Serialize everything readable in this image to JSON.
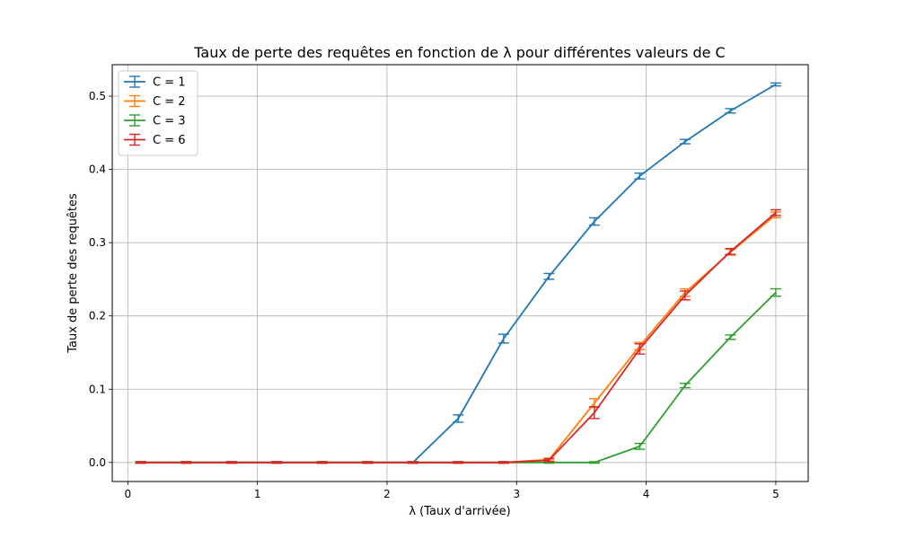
{
  "chart_data": {
    "type": "line",
    "title": "Taux de perte des requêtes en fonction de λ pour différentes valeurs de C",
    "xlabel": "λ (Taux d'arrivée)",
    "ylabel": "Taux de perte des requêtes",
    "xlim": [
      -0.12,
      5.25
    ],
    "ylim": [
      -0.026,
      0.543
    ],
    "xticks": [
      0,
      1,
      2,
      3,
      4,
      5
    ],
    "yticks": [
      0.0,
      0.1,
      0.2,
      0.3,
      0.4,
      0.5
    ],
    "xtick_labels": [
      "0",
      "1",
      "2",
      "3",
      "4",
      "5"
    ],
    "ytick_labels": [
      "0.0",
      "0.1",
      "0.2",
      "0.3",
      "0.4",
      "0.5"
    ],
    "grid": true,
    "error_bars": true,
    "legend": {
      "position": "top-left"
    },
    "x": [
      0.1,
      0.45,
      0.8,
      1.15,
      1.5,
      1.85,
      2.2,
      2.55,
      2.9,
      3.25,
      3.6,
      3.95,
      4.3,
      4.65,
      5.0
    ],
    "series": [
      {
        "name": "C = 1",
        "color": "#1f77b4",
        "values": [
          0.0,
          0.0,
          0.0,
          0.0,
          0.0,
          0.0,
          0.0,
          0.06,
          0.169,
          0.254,
          0.329,
          0.391,
          0.438,
          0.48,
          0.516
        ],
        "errors": [
          0.001,
          0.001,
          0.001,
          0.001,
          0.001,
          0.001,
          0.001,
          0.005,
          0.006,
          0.004,
          0.005,
          0.004,
          0.003,
          0.003,
          0.002
        ]
      },
      {
        "name": "C = 2",
        "color": "#ff7f0e",
        "values": [
          0.0,
          0.0,
          0.0,
          0.0,
          0.0,
          0.0,
          0.0,
          0.0,
          0.0,
          0.004,
          0.081,
          0.159,
          0.232,
          0.287,
          0.338
        ],
        "errors": [
          0.001,
          0.001,
          0.001,
          0.001,
          0.001,
          0.001,
          0.001,
          0.001,
          0.001,
          0.002,
          0.006,
          0.005,
          0.005,
          0.004,
          0.004
        ]
      },
      {
        "name": "C = 3",
        "color": "#2ca02c",
        "values": [
          0.0,
          0.0,
          0.0,
          0.0,
          0.0,
          0.0,
          0.0,
          0.0,
          0.0,
          0.0,
          0.0,
          0.022,
          0.105,
          0.171,
          0.232
        ],
        "errors": [
          0.001,
          0.001,
          0.001,
          0.001,
          0.001,
          0.001,
          0.001,
          0.001,
          0.001,
          0.001,
          0.001,
          0.004,
          0.003,
          0.003,
          0.005
        ]
      },
      {
        "name": "C = 6",
        "color": "#d62728",
        "values": [
          0.0,
          0.0,
          0.0,
          0.0,
          0.0,
          0.0,
          0.0,
          0.0,
          0.0,
          0.003,
          0.068,
          0.155,
          0.228,
          0.288,
          0.341
        ],
        "errors": [
          0.001,
          0.001,
          0.001,
          0.001,
          0.001,
          0.001,
          0.001,
          0.001,
          0.001,
          0.002,
          0.008,
          0.007,
          0.006,
          0.004,
          0.004
        ]
      }
    ]
  }
}
